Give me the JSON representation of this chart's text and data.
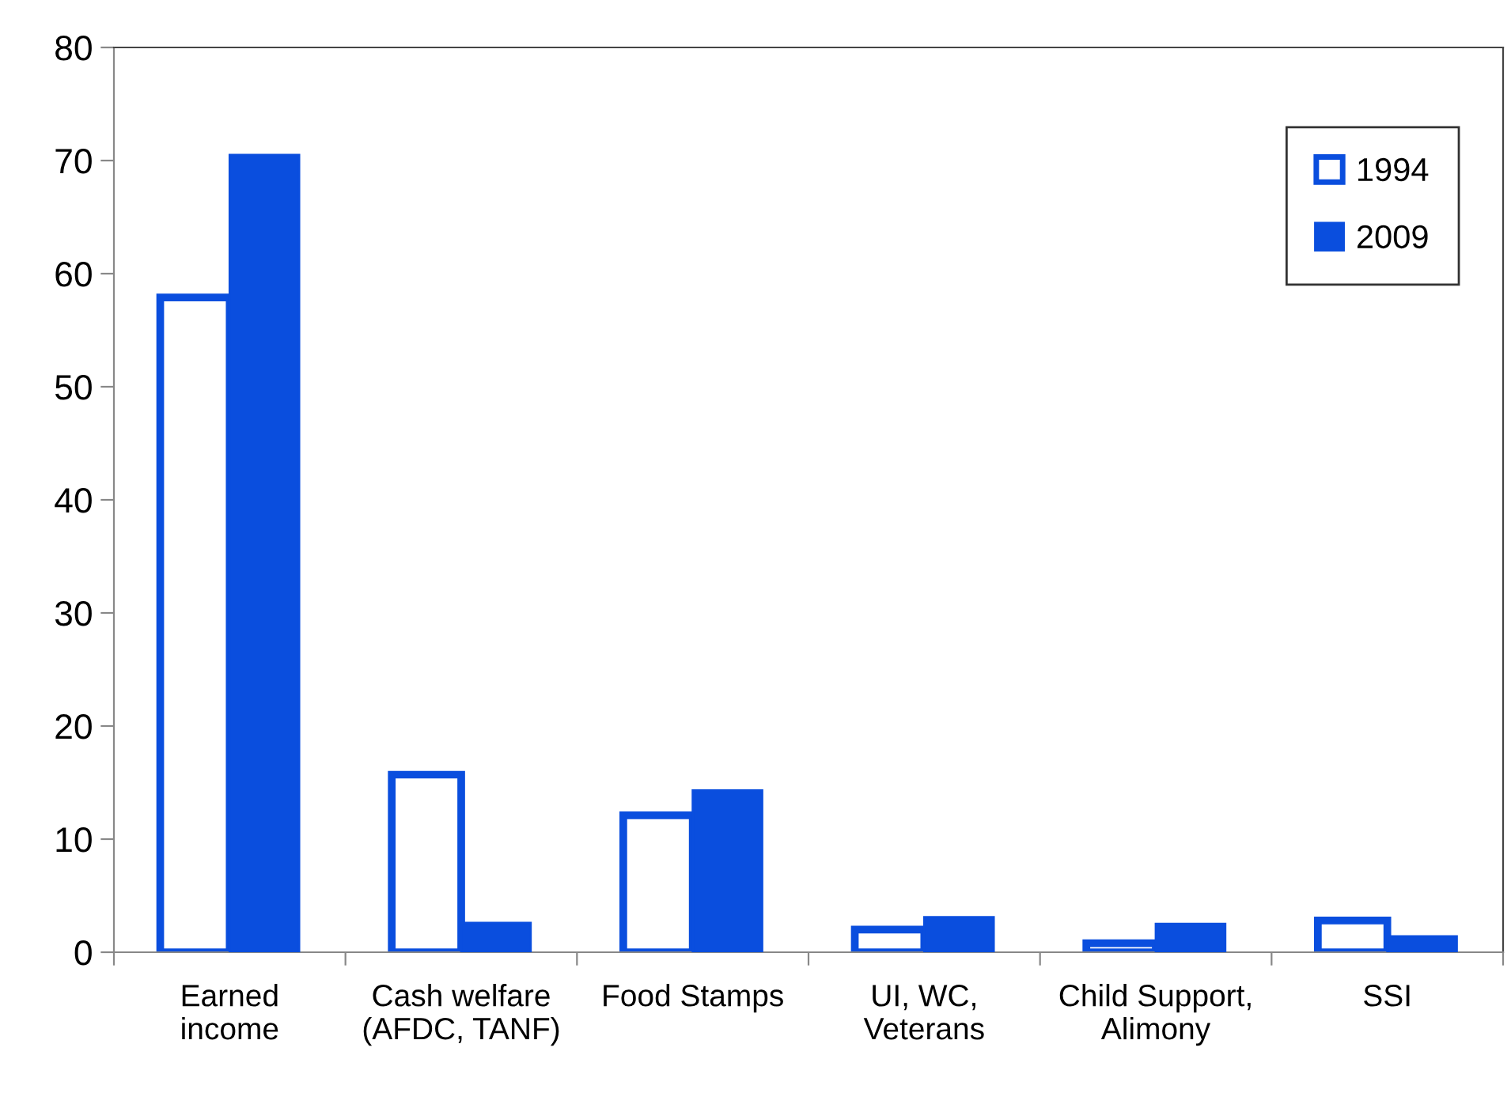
{
  "chart_data": {
    "type": "bar",
    "categories": [
      "Earned\nincome",
      "Cash welfare\n(AFDC, TANF)",
      "Food Stamps",
      "UI, WC,\nVeterans",
      "Child Support,\nAlimony",
      "SSI"
    ],
    "series": [
      {
        "name": "1994",
        "color": "#0a4ede",
        "values": [
          57.9,
          15.7,
          12.1,
          2.0,
          0.8,
          2.8
        ]
      },
      {
        "name": "2009",
        "color": "#0a4ede",
        "values": [
          70.5,
          2.6,
          14.3,
          3.1,
          2.5,
          1.4
        ]
      }
    ],
    "ylim": [
      0,
      80
    ],
    "yticks": [
      0,
      10,
      20,
      30,
      40,
      50,
      60,
      70,
      80
    ],
    "grid": false,
    "legend": "top right"
  }
}
